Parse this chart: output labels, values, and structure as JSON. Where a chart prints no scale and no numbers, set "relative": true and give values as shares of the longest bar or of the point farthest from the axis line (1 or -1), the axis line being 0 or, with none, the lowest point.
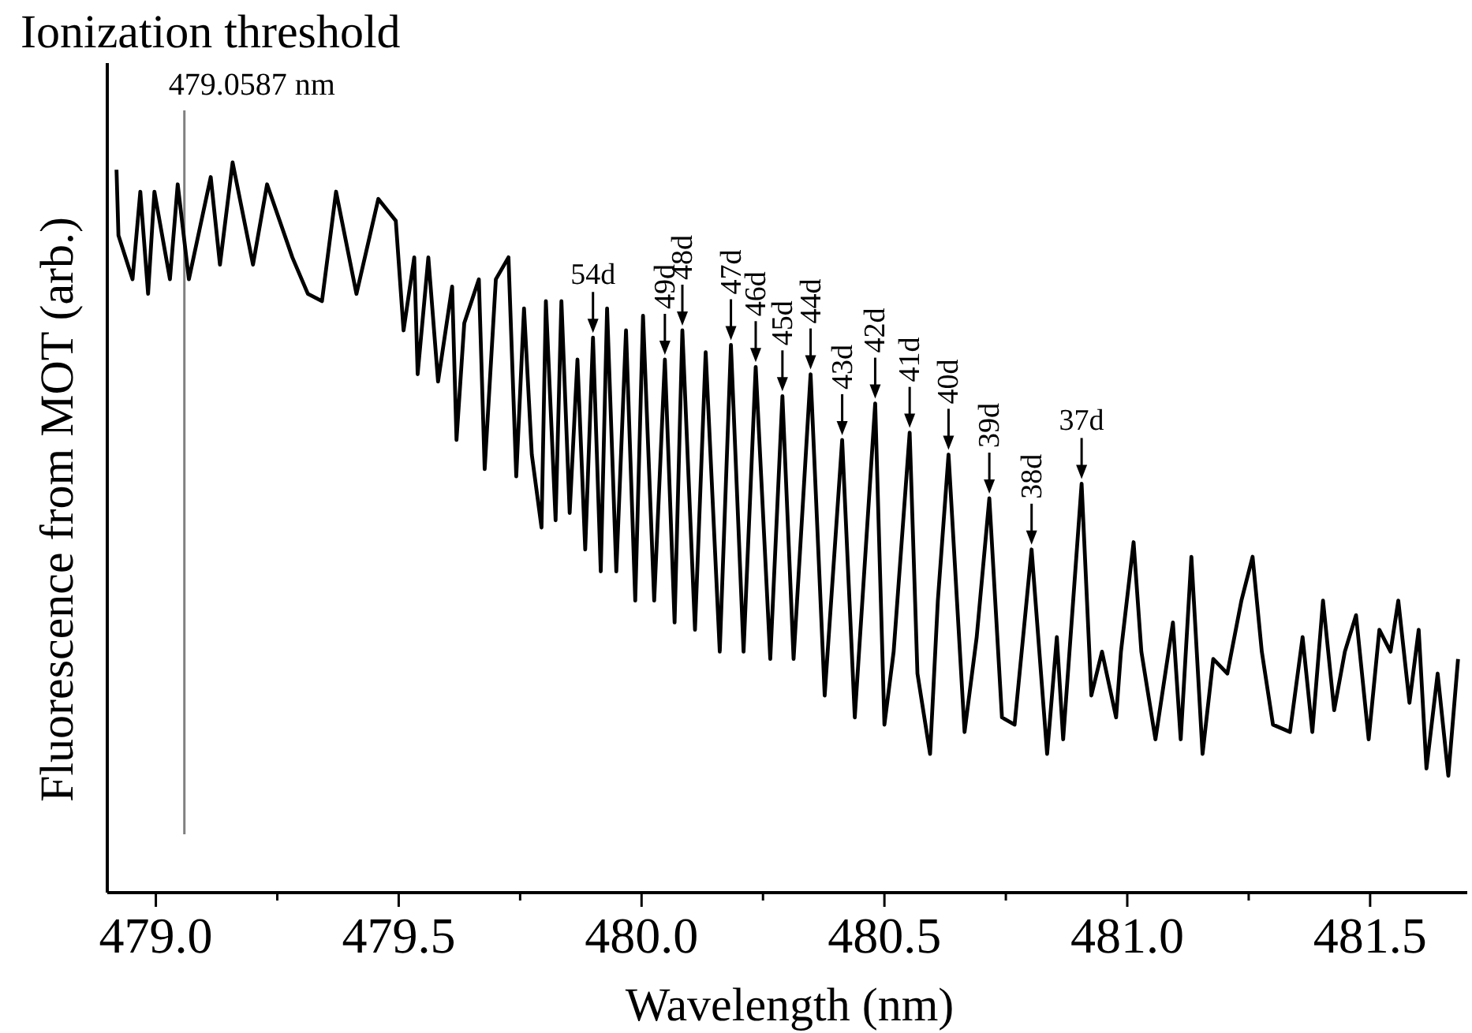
{
  "chart_data": {
    "type": "line",
    "title": "Ionization threshold",
    "xlabel": "Wavelength (nm)",
    "ylabel": "Fluorescence from MOT (arb.)",
    "relative": true,
    "xlim": [
      478.9,
      481.7
    ],
    "xticks": [
      {
        "value": 479,
        "label": "479.0"
      },
      {
        "value": 479.25,
        "label": null
      },
      {
        "value": 479.5,
        "label": "479.5"
      },
      {
        "value": 479.75,
        "label": null
      },
      {
        "value": 480,
        "label": "480.0"
      },
      {
        "value": 480.25,
        "label": null
      },
      {
        "value": 480.5,
        "label": "480.5"
      },
      {
        "value": 480.75,
        "label": null
      },
      {
        "value": 481,
        "label": "481.0"
      },
      {
        "value": 481.25,
        "label": null
      },
      {
        "value": 481.5,
        "label": "481.5"
      }
    ],
    "x": [
      478.919,
      478.923,
      478.952,
      478.968,
      478.984,
      478.997,
      479.029,
      479.045,
      479.068,
      479.113,
      479.132,
      479.158,
      479.2,
      479.229,
      479.281,
      479.313,
      479.342,
      479.371,
      479.413,
      479.458,
      479.494,
      479.51,
      479.532,
      479.539,
      479.561,
      479.581,
      479.61,
      479.619,
      479.635,
      479.665,
      479.677,
      479.7,
      479.726,
      479.742,
      479.758,
      479.774,
      479.794,
      479.803,
      479.823,
      479.835,
      479.852,
      479.868,
      479.884,
      479.9,
      479.916,
      479.929,
      479.948,
      479.968,
      479.987,
      480.003,
      480.026,
      480.048,
      480.068,
      480.084,
      480.11,
      480.132,
      480.161,
      480.184,
      480.21,
      480.235,
      480.265,
      480.29,
      480.313,
      480.348,
      480.377,
      480.413,
      480.439,
      480.481,
      480.5,
      480.519,
      480.552,
      480.568,
      480.594,
      480.61,
      480.632,
      480.665,
      480.69,
      480.716,
      480.742,
      480.768,
      480.787,
      480.803,
      480.835,
      480.855,
      480.868,
      480.906,
      480.926,
      480.948,
      480.977,
      480.987,
      481.013,
      481.029,
      481.058,
      481.094,
      481.11,
      481.132,
      481.155,
      481.177,
      481.206,
      481.235,
      481.258,
      481.277,
      481.3,
      481.335,
      481.361,
      481.381,
      481.403,
      481.426,
      481.448,
      481.471,
      481.497,
      481.519,
      481.542,
      481.558,
      481.581,
      481.6,
      481.616,
      481.639,
      481.661,
      481.681
    ],
    "series": [
      {
        "color": "#000000",
        "values": [
          0.99,
          0.9,
          0.84,
          0.96,
          0.82,
          0.96,
          0.84,
          0.97,
          0.84,
          0.98,
          0.86,
          1.0,
          0.86,
          0.97,
          0.87,
          0.82,
          0.81,
          0.96,
          0.82,
          0.95,
          0.92,
          0.77,
          0.87,
          0.71,
          0.87,
          0.7,
          0.83,
          0.62,
          0.78,
          0.84,
          0.58,
          0.84,
          0.87,
          0.57,
          0.8,
          0.6,
          0.5,
          0.81,
          0.51,
          0.81,
          0.52,
          0.73,
          0.47,
          0.76,
          0.44,
          0.8,
          0.44,
          0.77,
          0.4,
          0.79,
          0.4,
          0.73,
          0.37,
          0.77,
          0.36,
          0.74,
          0.33,
          0.75,
          0.33,
          0.72,
          0.32,
          0.68,
          0.32,
          0.71,
          0.27,
          0.62,
          0.24,
          0.67,
          0.23,
          0.33,
          0.63,
          0.3,
          0.19,
          0.4,
          0.6,
          0.22,
          0.35,
          0.54,
          0.24,
          0.23,
          0.36,
          0.47,
          0.19,
          0.35,
          0.21,
          0.56,
          0.27,
          0.33,
          0.24,
          0.33,
          0.48,
          0.33,
          0.21,
          0.37,
          0.21,
          0.46,
          0.19,
          0.32,
          0.3,
          0.4,
          0.46,
          0.33,
          0.23,
          0.22,
          0.35,
          0.22,
          0.4,
          0.25,
          0.33,
          0.38,
          0.21,
          0.36,
          0.33,
          0.4,
          0.26,
          0.36,
          0.17,
          0.3,
          0.16,
          0.32
        ]
      }
    ],
    "ref_lines": [
      {
        "axis": "x",
        "value": 479.0587,
        "label": "479.0587 nm",
        "color": "#808080"
      }
    ],
    "annotations": [
      {
        "text": "54d",
        "x": 479.9,
        "y": 0.76
      },
      {
        "text": "49d",
        "x": 480.048,
        "y": 0.73
      },
      {
        "text": "48d",
        "x": 480.084,
        "y": 0.77
      },
      {
        "text": "47d",
        "x": 480.184,
        "y": 0.75
      },
      {
        "text": "46d",
        "x": 480.235,
        "y": 0.72
      },
      {
        "text": "45d",
        "x": 480.29,
        "y": 0.68
      },
      {
        "text": "44d",
        "x": 480.348,
        "y": 0.71
      },
      {
        "text": "43d",
        "x": 480.413,
        "y": 0.62
      },
      {
        "text": "42d",
        "x": 480.481,
        "y": 0.67
      },
      {
        "text": "41d",
        "x": 480.552,
        "y": 0.63
      },
      {
        "text": "40d",
        "x": 480.632,
        "y": 0.6
      },
      {
        "text": "39d",
        "x": 480.716,
        "y": 0.54
      },
      {
        "text": "38d",
        "x": 480.803,
        "y": 0.47
      },
      {
        "text": "37d",
        "x": 480.906,
        "y": 0.56
      }
    ],
    "grid": false,
    "marker": "none",
    "line_style": "solid"
  }
}
